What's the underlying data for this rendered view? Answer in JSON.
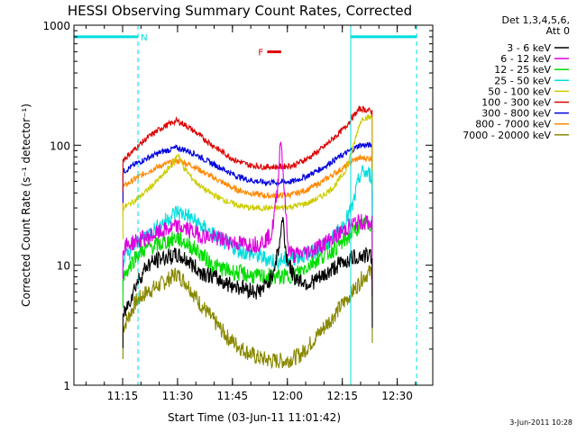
{
  "chart_data": {
    "type": "line",
    "title": "HESSI Observing Summary Count Rates, Corrected",
    "xlabel": "Start Time (03-Jun-11 11:01:42)",
    "ylabel": "Corrected Count Rate (s⁻¹ detector⁻¹)",
    "yscale": "log",
    "ylim": [
      1,
      1000
    ],
    "xlim_minutes": [
      0,
      98
    ],
    "x_tick_labels": [
      "11:15",
      "11:30",
      "11:45",
      "12:00",
      "12:15",
      "12:30"
    ],
    "x_tick_values_min": [
      13.3,
      28.3,
      43.3,
      58.3,
      73.3,
      88.3
    ],
    "y_tick_labels": [
      "1",
      "10",
      "100",
      "1000"
    ],
    "y_tick_values": [
      1,
      10,
      100,
      1000
    ],
    "legend_header": [
      "Det 1,3,4,5,6,",
      "Att 0"
    ],
    "legend_placement": "right",
    "corner_date": "3-Jun-2011 10:28",
    "flags": [
      {
        "label": "N",
        "color": "#00dddd",
        "segments": [
          [
            0,
            17.5
          ],
          [
            75.6,
            93.6
          ]
        ],
        "y": 800
      },
      {
        "label": "F",
        "color": "#dd0000",
        "segments": [
          [
            52.8,
            56.6
          ]
        ],
        "y": 600
      }
    ],
    "gaps_min": [
      [
        0,
        13.4
      ],
      [
        81.5,
        98
      ]
    ],
    "vlines_min": [
      17.5,
      75.6,
      93.6
    ],
    "series": [
      {
        "name": "3 - 6 keV",
        "color": "#000000",
        "x": [
          13.4,
          17,
          20,
          24,
          28,
          31,
          34,
          38,
          42,
          46,
          50,
          52,
          54,
          56,
          57,
          58,
          60,
          64,
          68,
          72,
          76,
          79,
          81.5
        ],
        "y": [
          3.7,
          7,
          10,
          11.5,
          12,
          11,
          9,
          8,
          7,
          6.5,
          6,
          6.5,
          8,
          14,
          25,
          12,
          8,
          7,
          8,
          10,
          11.5,
          12,
          12
        ]
      },
      {
        "name": "6 - 12 keV",
        "color": "#dd00dd",
        "x": [
          13.4,
          17,
          20,
          24,
          28,
          31,
          34,
          38,
          42,
          46,
          50,
          52,
          54,
          55.5,
          56.5,
          57.5,
          58.5,
          60,
          64,
          68,
          72,
          76,
          79,
          81.5
        ],
        "y": [
          14,
          16,
          17,
          19,
          21,
          20,
          18,
          17,
          16,
          15,
          15,
          16,
          18,
          40,
          120,
          40,
          14,
          12,
          13,
          15,
          18,
          22,
          23,
          22
        ]
      },
      {
        "name": "12 - 25 keV",
        "color": "#00dd00",
        "x": [
          13.4,
          17,
          20,
          24,
          28,
          31,
          34,
          38,
          42,
          46,
          50,
          54,
          58,
          62,
          66,
          70,
          74,
          77,
          79,
          81.5
        ],
        "y": [
          8,
          12,
          14,
          15,
          17,
          15,
          13,
          10,
          9,
          8.5,
          8,
          8,
          8,
          9,
          11,
          13,
          16,
          20,
          22,
          22
        ]
      },
      {
        "name": "25 - 50 keV",
        "color": "#00dddd",
        "x": [
          13.4,
          17,
          20,
          24,
          28,
          31,
          34,
          38,
          42,
          46,
          50,
          54,
          58,
          62,
          66,
          70,
          73,
          76,
          78,
          79,
          81.5
        ],
        "y": [
          11,
          15,
          18,
          22,
          28,
          26,
          22,
          18,
          15,
          13,
          12,
          11,
          11,
          12,
          13,
          16,
          20,
          30,
          55,
          60,
          55
        ]
      },
      {
        "name": "50 - 100 keV",
        "color": "#cccc00",
        "x": [
          13.4,
          17,
          20,
          24,
          27,
          28.5,
          30,
          33,
          36,
          40,
          44,
          48,
          52,
          56,
          60,
          64,
          68,
          71,
          74,
          76,
          78,
          79,
          81.5
        ],
        "y": [
          30,
          35,
          42,
          55,
          70,
          85,
          65,
          50,
          42,
          36,
          32,
          30,
          30,
          30,
          31,
          33,
          38,
          45,
          60,
          90,
          150,
          170,
          170
        ]
      },
      {
        "name": "100 - 300 keV",
        "color": "#dd0000",
        "x": [
          13.4,
          17,
          20,
          24,
          28,
          30,
          33,
          36,
          40,
          44,
          48,
          52,
          56,
          60,
          64,
          68,
          71,
          74,
          76,
          78,
          79,
          81.5
        ],
        "y": [
          75,
          95,
          115,
          140,
          160,
          150,
          130,
          110,
          90,
          75,
          68,
          66,
          66,
          68,
          78,
          95,
          115,
          140,
          170,
          200,
          200,
          190
        ]
      },
      {
        "name": "300 - 800 keV",
        "color": "#0000dd",
        "x": [
          13.4,
          17,
          20,
          24,
          28,
          30,
          33,
          36,
          40,
          44,
          48,
          52,
          56,
          60,
          64,
          68,
          71,
          74,
          76,
          78,
          79,
          81.5
        ],
        "y": [
          60,
          70,
          78,
          88,
          95,
          92,
          85,
          75,
          65,
          56,
          51,
          49,
          49,
          50,
          56,
          65,
          75,
          85,
          92,
          100,
          100,
          100
        ]
      },
      {
        "name": "800 - 7000 keV",
        "color": "#ff8800",
        "x": [
          13.4,
          17,
          20,
          24,
          28,
          30,
          33,
          36,
          40,
          44,
          48,
          52,
          56,
          60,
          64,
          68,
          71,
          74,
          76,
          78,
          79,
          81.5
        ],
        "y": [
          45,
          53,
          60,
          68,
          74,
          72,
          66,
          58,
          50,
          43,
          40,
          38,
          38,
          39,
          43,
          50,
          58,
          66,
          74,
          78,
          78,
          78
        ]
      },
      {
        "name": "7000 - 20000 keV",
        "color": "#888800",
        "x": [
          13.4,
          17,
          20,
          24,
          28,
          31,
          34,
          38,
          42,
          46,
          50,
          54,
          58,
          62,
          66,
          70,
          74,
          77,
          79,
          81.5
        ],
        "y": [
          3,
          5,
          6,
          7,
          8.5,
          7,
          5,
          3.5,
          2.5,
          2,
          1.7,
          1.6,
          1.6,
          1.8,
          2.5,
          3.5,
          5,
          6.5,
          8,
          9
        ]
      }
    ]
  }
}
